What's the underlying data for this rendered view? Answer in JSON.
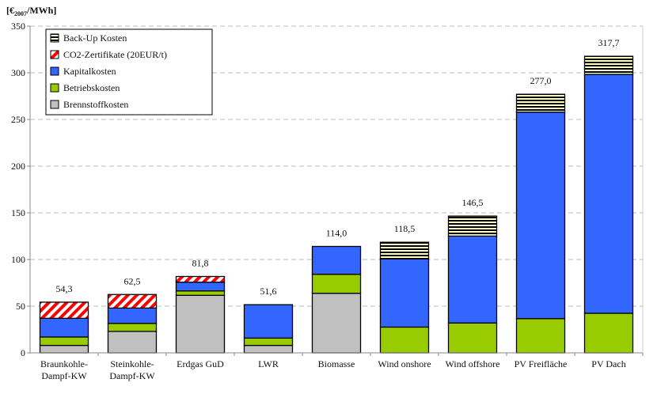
{
  "chart_data": {
    "type": "bar",
    "stacked": true,
    "ylabel": "[€2007/MWh]",
    "ylabel_main": "[€",
    "ylabel_sub": "2007",
    "ylabel_end": "/MWh]",
    "ylim": [
      0,
      350
    ],
    "yticks": [
      0,
      50,
      100,
      150,
      200,
      250,
      300,
      350
    ],
    "grid": true,
    "legend_position": "top-left",
    "categories": [
      [
        "Braunkohle-",
        "Dampf-KW"
      ],
      [
        "Steinkohle-",
        "Dampf-KW"
      ],
      [
        "Erdgas GuD"
      ],
      [
        "LWR"
      ],
      [
        "Biomasse"
      ],
      [
        "Wind onshore"
      ],
      [
        "Wind offshore"
      ],
      [
        "PV Freifläche"
      ],
      [
        "PV Dach"
      ]
    ],
    "totals_labels": [
      "54,3",
      "62,5",
      "81,8",
      "51,6",
      "114,0",
      "118,5",
      "146,5",
      "277,0",
      "317,7"
    ],
    "series": [
      {
        "name": "Brennstoffkosten",
        "color": "#c0c0c0",
        "pattern": "solid",
        "values": [
          8,
          23,
          61.6,
          8,
          63.8,
          0,
          0,
          0,
          0
        ]
      },
      {
        "name": "Betriebskosten",
        "color": "#99cc00",
        "pattern": "solid",
        "values": [
          9,
          8.6,
          4.8,
          7.8,
          20.4,
          27.6,
          32,
          36.7,
          42.4
        ]
      },
      {
        "name": "Kapitalkosten",
        "color": "#3366ff",
        "pattern": "solid",
        "values": [
          20,
          16.4,
          9.3,
          35.8,
          29.8,
          73,
          93.1,
          221.2,
          255.9
        ]
      },
      {
        "name": "CO2-Zertifikate (20EUR/t)",
        "color": "#ff0000",
        "pattern": "diagonal",
        "values": [
          17.3,
          14.5,
          6.1,
          0,
          0,
          0,
          0,
          0,
          0
        ]
      },
      {
        "name": "Back-Up Kosten",
        "color": "#ffffcc",
        "pattern": "horizontal",
        "values": [
          0,
          0,
          0,
          0,
          0,
          17.9,
          21.4,
          19.1,
          19.4
        ]
      }
    ]
  }
}
